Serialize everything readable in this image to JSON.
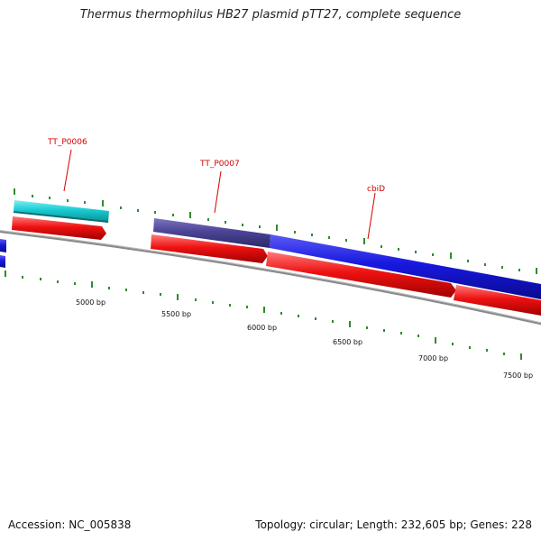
{
  "header": {
    "title": "Thermus thermophilus HB27 plasmid pTT27, complete sequence"
  },
  "footer": {
    "accession": "Accession: NC_005838",
    "stats": "Topology: circular; Length: 232,605 bp; Genes: 228"
  },
  "colors": {
    "backbone": "#8a8a8a",
    "tick": "#2e8b2e",
    "cyan_feature": "#17c9cf",
    "purple_feature": "#4b4495",
    "blue_feature": "#1818e0",
    "red_feature": "#ee1111",
    "label": "#d40000"
  },
  "gene_labels": [
    "TT_P0006",
    "TT_P0007",
    "cbiD"
  ],
  "scale_labels": [
    "5000 bp",
    "5500 bp",
    "6000 bp",
    "6500 bp",
    "7000 bp",
    "7500 bp"
  ]
}
